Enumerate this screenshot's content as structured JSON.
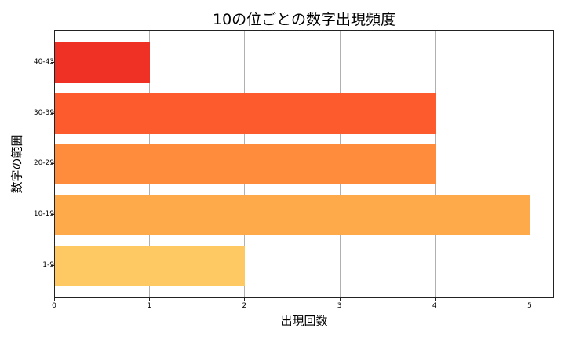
{
  "chart_data": {
    "type": "bar",
    "orientation": "horizontal",
    "title": "10の位ごとの数字出現頻度",
    "xlabel": "出現回数",
    "ylabel": "数字の範囲",
    "categories": [
      "1-9",
      "10-19",
      "20-29",
      "30-39",
      "40-43"
    ],
    "values": [
      2,
      5,
      4,
      4,
      1
    ],
    "colors": [
      "#FEC962",
      "#FEAA4A",
      "#FE8C3C",
      "#FD5A2E",
      "#EE3124"
    ],
    "xlim": [
      0,
      5.25
    ],
    "xticks": [
      "0",
      "1",
      "2",
      "3",
      "4",
      "5"
    ],
    "grid": "x-axis vertical lines",
    "legend": null
  }
}
